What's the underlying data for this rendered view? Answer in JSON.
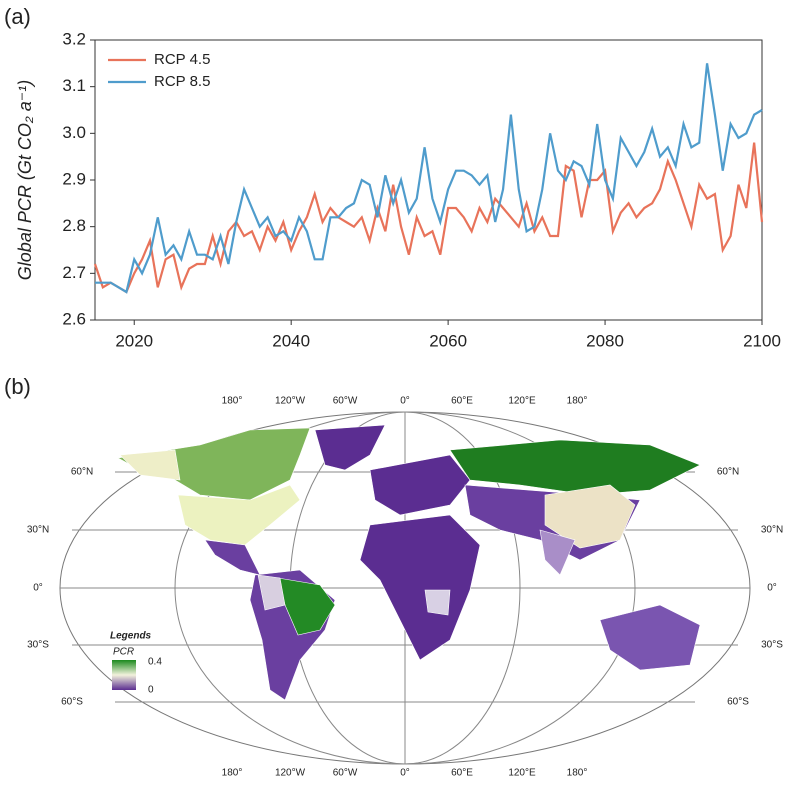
{
  "chart_data": {
    "type": "line",
    "panel_label": "(a)",
    "ylabel": "Global PCR (Gt CO₂ a⁻¹)",
    "x": [
      2015,
      2016,
      2017,
      2018,
      2019,
      2020,
      2021,
      2022,
      2023,
      2024,
      2025,
      2026,
      2027,
      2028,
      2029,
      2030,
      2031,
      2032,
      2033,
      2034,
      2035,
      2036,
      2037,
      2038,
      2039,
      2040,
      2041,
      2042,
      2043,
      2044,
      2045,
      2046,
      2047,
      2048,
      2049,
      2050,
      2051,
      2052,
      2053,
      2054,
      2055,
      2056,
      2057,
      2058,
      2059,
      2060,
      2061,
      2062,
      2063,
      2064,
      2065,
      2066,
      2067,
      2068,
      2069,
      2070,
      2071,
      2072,
      2073,
      2074,
      2075,
      2076,
      2077,
      2078,
      2079,
      2080,
      2081,
      2082,
      2083,
      2084,
      2085,
      2086,
      2087,
      2088,
      2089,
      2090,
      2091,
      2092,
      2093,
      2094,
      2095,
      2096,
      2097,
      2098,
      2099,
      2100
    ],
    "series": [
      {
        "name": "RCP 4.5",
        "color": "#e8735a",
        "values": [
          2.72,
          2.67,
          2.68,
          2.67,
          2.66,
          2.7,
          2.73,
          2.77,
          2.67,
          2.73,
          2.74,
          2.67,
          2.71,
          2.72,
          2.72,
          2.78,
          2.72,
          2.79,
          2.81,
          2.78,
          2.79,
          2.75,
          2.8,
          2.77,
          2.81,
          2.75,
          2.79,
          2.82,
          2.87,
          2.81,
          2.84,
          2.82,
          2.81,
          2.8,
          2.82,
          2.77,
          2.84,
          2.79,
          2.89,
          2.8,
          2.74,
          2.82,
          2.78,
          2.79,
          2.74,
          2.84,
          2.84,
          2.82,
          2.79,
          2.84,
          2.81,
          2.86,
          2.84,
          2.82,
          2.8,
          2.85,
          2.79,
          2.82,
          2.78,
          2.78,
          2.93,
          2.92,
          2.82,
          2.9,
          2.9,
          2.92,
          2.79,
          2.83,
          2.85,
          2.82,
          2.84,
          2.85,
          2.88,
          2.94,
          2.9,
          2.85,
          2.8,
          2.89,
          2.86,
          2.87,
          2.75,
          2.78,
          2.89,
          2.84,
          2.98,
          2.81
        ]
      },
      {
        "name": "RCP 8.5",
        "color": "#4f9ccc",
        "values": [
          2.68,
          2.68,
          2.68,
          2.67,
          2.66,
          2.73,
          2.7,
          2.74,
          2.82,
          2.74,
          2.76,
          2.73,
          2.79,
          2.74,
          2.74,
          2.73,
          2.78,
          2.72,
          2.81,
          2.88,
          2.84,
          2.8,
          2.82,
          2.78,
          2.79,
          2.77,
          2.82,
          2.79,
          2.73,
          2.73,
          2.82,
          2.82,
          2.84,
          2.85,
          2.9,
          2.89,
          2.82,
          2.91,
          2.85,
          2.9,
          2.83,
          2.86,
          2.97,
          2.86,
          2.81,
          2.88,
          2.92,
          2.92,
          2.91,
          2.89,
          2.91,
          2.81,
          2.88,
          3.04,
          2.88,
          2.79,
          2.8,
          2.88,
          3.0,
          2.92,
          2.9,
          2.94,
          2.93,
          2.89,
          3.02,
          2.9,
          2.86,
          2.99,
          2.96,
          2.93,
          2.96,
          3.01,
          2.95,
          2.97,
          2.93,
          3.02,
          2.97,
          2.98,
          3.15,
          3.04,
          2.92,
          3.02,
          2.99,
          3.0,
          3.04,
          3.05
        ]
      }
    ],
    "xlim": [
      2015,
      2100
    ],
    "xticks": [
      2020,
      2040,
      2060,
      2080,
      2100
    ],
    "ylim": [
      2.6,
      3.2
    ],
    "yticks": [
      2.6,
      2.7,
      2.8,
      2.9,
      {
        "value": 3,
        "label": "3.0"
      },
      3.1,
      3.2
    ],
    "legend": "upper left"
  },
  "map": {
    "panel_label": "(b)",
    "top_labels": [
      "180°",
      "120°W",
      "60°W",
      "0°",
      "60°E",
      "120°E",
      "180°"
    ],
    "bottom_labels": [
      "180°",
      "120°W",
      "60°W",
      "0°",
      "60°E",
      "120°E",
      "180°"
    ],
    "left_labels": [
      "60°N",
      "30°N",
      "0°",
      "30°S",
      "60°S"
    ],
    "right_labels": [
      "60°N",
      "30°N",
      "0°",
      "30°S",
      "60°S"
    ],
    "legend": {
      "title": "Legends",
      "label": "PCR",
      "max": "0.4",
      "min": "0"
    }
  }
}
